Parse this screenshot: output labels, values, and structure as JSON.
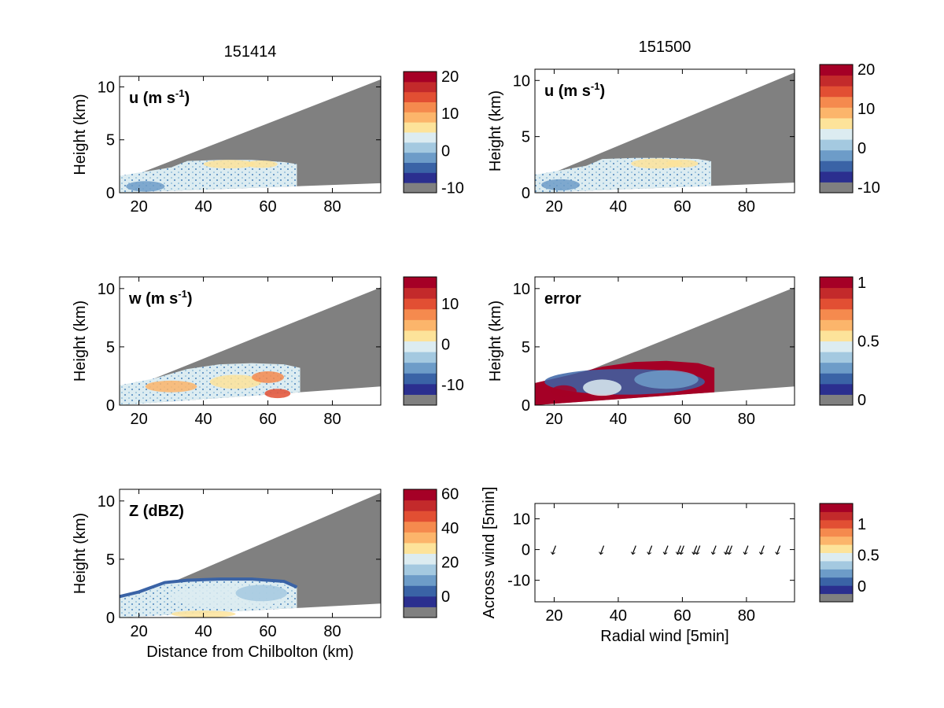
{
  "figure": {
    "titles": [
      "151414",
      "151500"
    ]
  },
  "colormap": [
    "#808080",
    "#2b2f8f",
    "#3a63a6",
    "#6d9cc8",
    "#a4c9e0",
    "#dcecf1",
    "#fde39a",
    "#fcb56b",
    "#f58a4e",
    "#e24f33",
    "#c32a2b",
    "#a50026"
  ],
  "chart_data": [
    {
      "type": "heatmap",
      "id": "u-151414",
      "title": "151414",
      "panel_label": "u (m s",
      "panel_label_sup": "-1",
      "panel_label_end": ")",
      "ylabel": "Height (km)",
      "xlabel": "",
      "xlim": [
        14,
        95
      ],
      "ylim": [
        0,
        11
      ],
      "xticks": [
        "20",
        "40",
        "60",
        "80"
      ],
      "yticks": [
        "0",
        "5",
        "10"
      ],
      "colorbar_ticks": [
        "-10",
        "0",
        "10",
        "20"
      ],
      "beam_top": [
        [
          14,
          1.1
        ],
        [
          95,
          10.7
        ]
      ],
      "beam_bottom": [
        [
          14,
          0
        ],
        [
          95,
          0.9
        ]
      ],
      "echo_top": [
        [
          14,
          1.6
        ],
        [
          20,
          1.9
        ],
        [
          30,
          2.4
        ],
        [
          35,
          3.0
        ],
        [
          45,
          3.1
        ],
        [
          55,
          3.1
        ],
        [
          65,
          2.9
        ],
        [
          69,
          2.7
        ]
      ]
    },
    {
      "type": "heatmap",
      "id": "u-151500",
      "title": "151500",
      "panel_label": "u (m s",
      "panel_label_sup": "-1",
      "panel_label_end": ")",
      "ylabel": "Height (km)",
      "xlabel": "",
      "xlim": [
        14,
        95
      ],
      "ylim": [
        0,
        11
      ],
      "xticks": [
        "20",
        "40",
        "60",
        "80"
      ],
      "yticks": [
        "0",
        "5",
        "10"
      ],
      "colorbar_ticks": [
        "-10",
        "0",
        "10",
        "20"
      ],
      "beam_top": [
        [
          14,
          1.1
        ],
        [
          95,
          10.7
        ]
      ],
      "beam_bottom": [
        [
          14,
          0
        ],
        [
          95,
          0.9
        ]
      ],
      "echo_top": [
        [
          14,
          1.6
        ],
        [
          20,
          1.9
        ],
        [
          30,
          2.4
        ],
        [
          35,
          3.0
        ],
        [
          45,
          3.1
        ],
        [
          55,
          3.1
        ],
        [
          65,
          3.0
        ],
        [
          69,
          2.8
        ]
      ]
    },
    {
      "type": "heatmap",
      "id": "w-151414",
      "panel_label": "w (m s",
      "panel_label_sup": "-1",
      "panel_label_end": ")",
      "ylabel": "Height (km)",
      "xlabel": "",
      "xlim": [
        14,
        95
      ],
      "ylim": [
        0,
        11
      ],
      "xticks": [
        "20",
        "40",
        "60",
        "80"
      ],
      "yticks": [
        "0",
        "5",
        "10"
      ],
      "colorbar_ticks": [
        "-10",
        "0",
        "10"
      ],
      "beam_top": [
        [
          14,
          1.1
        ],
        [
          95,
          10.1
        ]
      ],
      "beam_bottom": [
        [
          14,
          0
        ],
        [
          95,
          1.6
        ]
      ],
      "echo_top": [
        [
          14,
          1.7
        ],
        [
          25,
          2.3
        ],
        [
          35,
          3.1
        ],
        [
          45,
          3.5
        ],
        [
          55,
          3.6
        ],
        [
          65,
          3.5
        ],
        [
          70,
          3.2
        ]
      ]
    },
    {
      "type": "heatmap",
      "id": "error-151500",
      "panel_label": "error",
      "panel_label_sup": "",
      "panel_label_end": "",
      "ylabel": "Height (km)",
      "xlabel": "",
      "xlim": [
        14,
        95
      ],
      "ylim": [
        0,
        11
      ],
      "xticks": [
        "20",
        "40",
        "60",
        "80"
      ],
      "yticks": [
        "0",
        "5",
        "10"
      ],
      "colorbar_ticks": [
        "0",
        "0.5",
        "1"
      ],
      "beam_top": [
        [
          14,
          1.1
        ],
        [
          95,
          10.1
        ]
      ],
      "beam_bottom": [
        [
          14,
          0
        ],
        [
          95,
          1.6
        ]
      ],
      "echo_top": [
        [
          14,
          1.9
        ],
        [
          25,
          2.6
        ],
        [
          35,
          3.3
        ],
        [
          45,
          3.7
        ],
        [
          55,
          3.8
        ],
        [
          65,
          3.6
        ],
        [
          70,
          3.2
        ]
      ]
    },
    {
      "type": "heatmap",
      "id": "Z-151414",
      "panel_label": "Z (dBZ)",
      "panel_label_sup": "",
      "panel_label_end": "",
      "ylabel": "Height (km)",
      "xlabel": "Distance from Chilbolton (km)",
      "xlim": [
        14,
        95
      ],
      "ylim": [
        0,
        11
      ],
      "xticks": [
        "20",
        "40",
        "60",
        "80"
      ],
      "yticks": [
        "0",
        "5",
        "10"
      ],
      "colorbar_ticks": [
        "0",
        "20",
        "40",
        "60"
      ],
      "beam_top": [
        [
          14,
          1.1
        ],
        [
          95,
          10.7
        ]
      ],
      "beam_bottom": [
        [
          14,
          0
        ],
        [
          95,
          1.2
        ]
      ],
      "echo_top": [
        [
          14,
          1.8
        ],
        [
          20,
          2.2
        ],
        [
          28,
          3.0
        ],
        [
          35,
          3.2
        ],
        [
          45,
          3.3
        ],
        [
          55,
          3.3
        ],
        [
          65,
          3.1
        ],
        [
          69,
          2.6
        ]
      ]
    },
    {
      "type": "scatter",
      "id": "wind-vectors",
      "ylabel": "Across wind [5min]",
      "xlabel": "Radial wind [5min]",
      "xlim": [
        14,
        95
      ],
      "ylim": [
        -17,
        15
      ],
      "xticks": [
        "20",
        "40",
        "60",
        "80"
      ],
      "yticks": [
        "-10",
        "0",
        "10"
      ],
      "colorbar_ticks": [
        "0",
        "0.5",
        "1"
      ],
      "x": [
        20,
        35,
        45,
        50,
        55,
        59,
        60,
        64,
        65,
        70,
        74,
        75,
        80,
        85,
        90
      ],
      "y": [
        0,
        0,
        0,
        0,
        0,
        0,
        0,
        0,
        0,
        0,
        0,
        0,
        0,
        0,
        0
      ]
    }
  ]
}
